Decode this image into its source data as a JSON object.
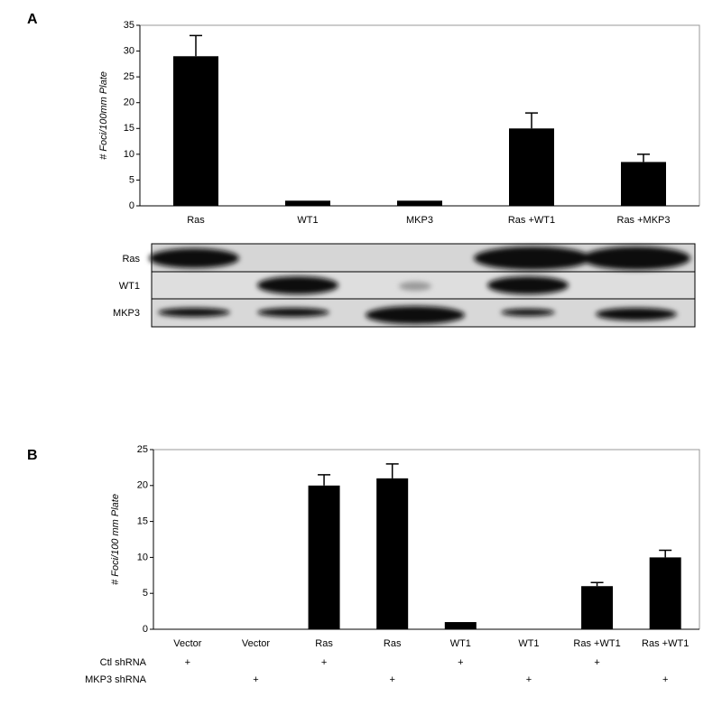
{
  "chart_data": [
    {
      "type": "bar",
      "panel": "A",
      "y_label": "# Foci/100mm Plate",
      "categories": [
        "Ras",
        "WT1",
        "MKP3",
        "Ras  +WT1",
        "Ras  +MKP3"
      ],
      "values": [
        29,
        1,
        1,
        15,
        8.5
      ],
      "errors": [
        4,
        null,
        null,
        3,
        1.5
      ],
      "color": "#000000",
      "ylim": [
        0,
        35
      ],
      "yticks": [
        0,
        5,
        10,
        15,
        20,
        25,
        30,
        35
      ],
      "grid": false
    },
    {
      "type": "bar",
      "panel": "B",
      "y_label": "# Foci/100 mm Plate",
      "categories": [
        "Vector",
        "Vector",
        "Ras",
        "Ras",
        "WT1",
        "WT1",
        "Ras +WT1",
        "Ras +WT1"
      ],
      "values": [
        0,
        0,
        20,
        21,
        1,
        0,
        6,
        10
      ],
      "errors": [
        null,
        null,
        1.5,
        2,
        null,
        null,
        0.5,
        1
      ],
      "color": "#000000",
      "ylim": [
        0,
        25
      ],
      "yticks": [
        0,
        5,
        10,
        15,
        20,
        25
      ],
      "grid": false,
      "treatments": [
        {
          "label": "Ctl shRNA",
          "marks": [
            "+",
            null,
            "+",
            null,
            "+",
            null,
            "+",
            null
          ]
        },
        {
          "label": "MKP3  shRNA",
          "marks": [
            null,
            "+",
            null,
            "+",
            null,
            "+",
            null,
            "+"
          ]
        }
      ]
    }
  ],
  "blot": {
    "rows": [
      "Ras",
      "WT1",
      "MKP3"
    ]
  }
}
